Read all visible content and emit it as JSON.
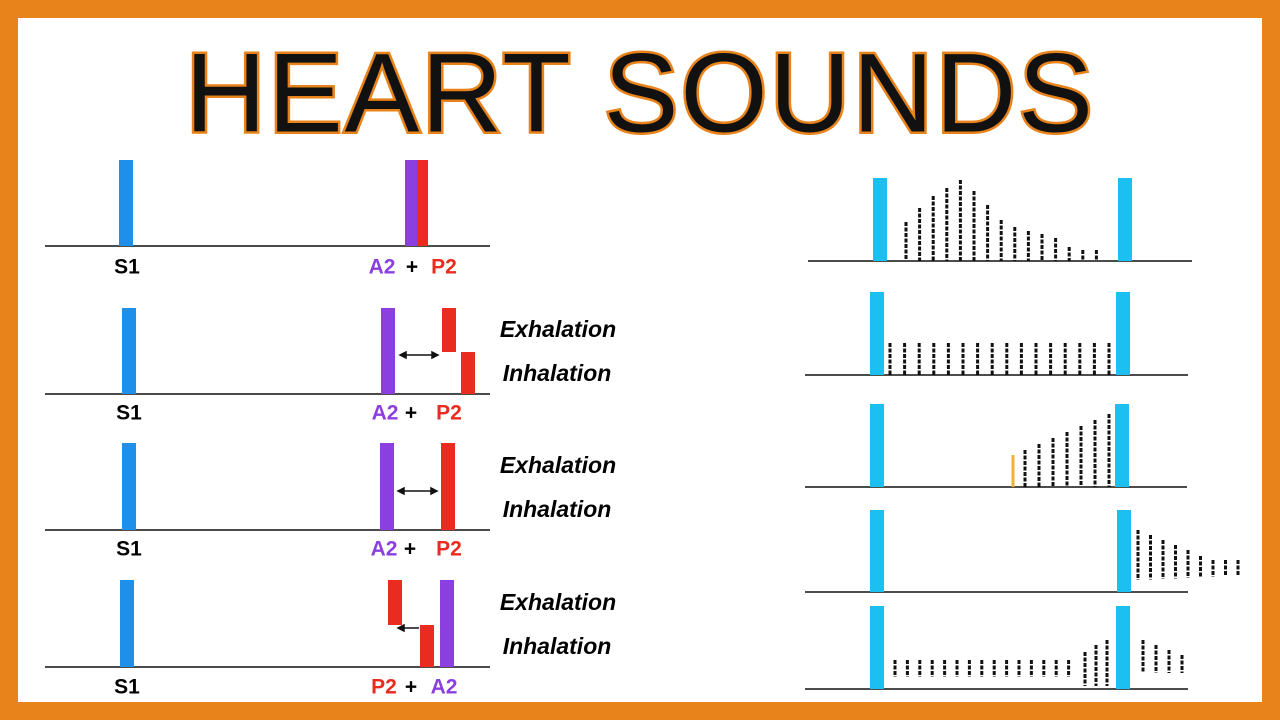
{
  "title": "HEART SOUNDS",
  "panels": [
    {
      "first": "S1",
      "left": "A2",
      "plus": "+",
      "right": "P2"
    },
    {
      "first": "S1",
      "left": "A2",
      "plus": "+",
      "right": "P2",
      "exhalation": "Exhalation",
      "inhalation": "Inhalation"
    },
    {
      "first": "S1",
      "left": "A2",
      "plus": "+",
      "right": "P2",
      "exhalation": "Exhalation",
      "inhalation": "Inhalation"
    },
    {
      "first": "S1",
      "left": "P2",
      "plus": "+",
      "right": "A2",
      "exhalation": "Exhalation",
      "inhalation": "Inhalation"
    }
  ]
}
